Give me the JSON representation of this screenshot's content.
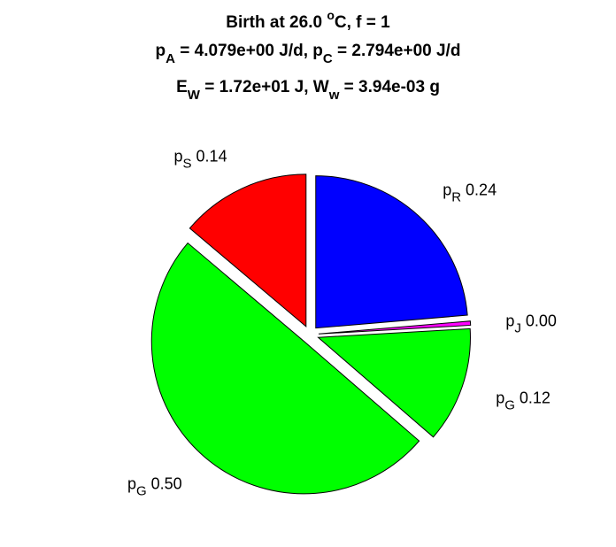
{
  "chart_data": {
    "type": "pie",
    "title": [
      {
        "parts": [
          {
            "t": "Birth at 26.0 "
          },
          {
            "t": "o",
            "sup": true
          },
          {
            "t": "C, f = 1"
          }
        ]
      },
      {
        "parts": [
          {
            "t": "p"
          },
          {
            "t": "A",
            "sub": true
          },
          {
            "t": " = 4.079e+00 J/d, p"
          },
          {
            "t": "C",
            "sub": true
          },
          {
            "t": " = 2.794e+00 J/d"
          }
        ]
      },
      {
        "parts": [
          {
            "t": "E"
          },
          {
            "t": "W",
            "sub": true
          },
          {
            "t": " = 1.72e+01 J, W"
          },
          {
            "t": "w",
            "sub": true
          },
          {
            "t": " = 3.94e-03 g"
          }
        ]
      }
    ],
    "slices": [
      {
        "symbol": "p",
        "subscript": "R",
        "value_label": "0.24",
        "value": 0.2365,
        "color": "#0000ff",
        "exploded": true
      },
      {
        "symbol": "p",
        "subscript": "J",
        "value_label": "0.00",
        "value": 0.0044,
        "color": "#ff00ff",
        "exploded": true
      },
      {
        "symbol": "p",
        "subscript": "G",
        "value_label": "0.12",
        "value": 0.1226,
        "color": "#00ff00",
        "exploded": true
      },
      {
        "symbol": "p",
        "subscript": "G",
        "value_label": "0.50",
        "value": 0.4982,
        "color": "#00ff00",
        "exploded": true
      },
      {
        "symbol": "p",
        "subscript": "S",
        "value_label": "0.14",
        "value": 0.1383,
        "color": "#ff0000",
        "exploded": true
      }
    ]
  }
}
